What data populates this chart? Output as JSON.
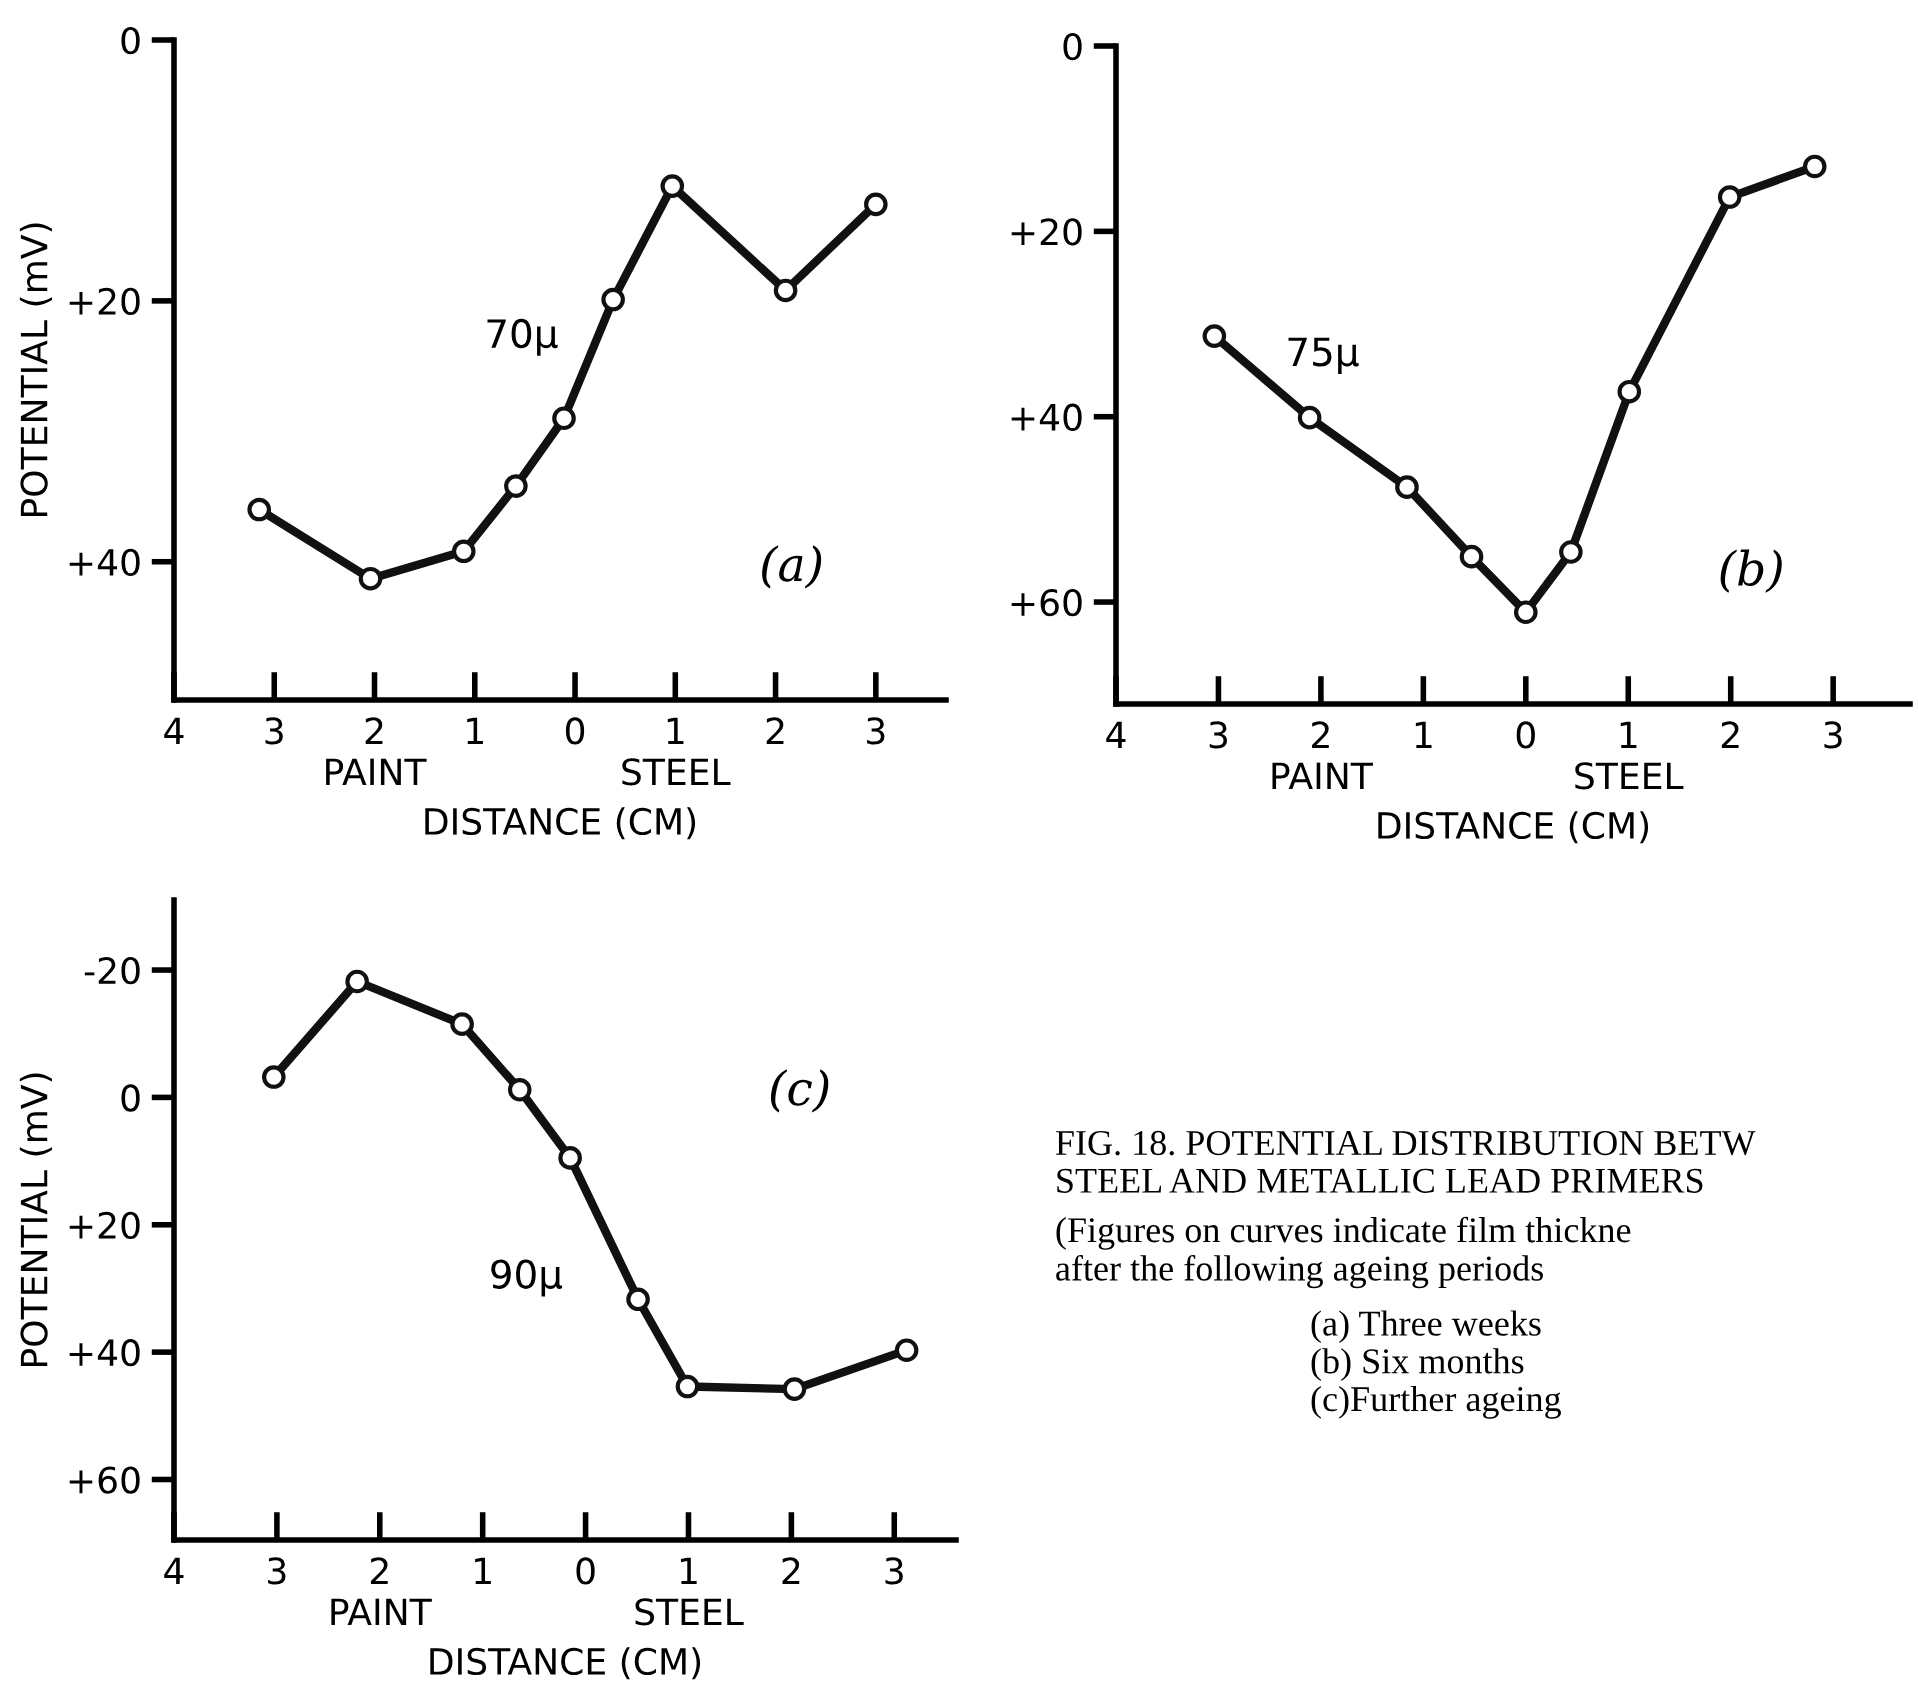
{
  "chart_data": [
    {
      "type": "line",
      "xlabel": "DISTANCE (CM)",
      "ylabel": "POTENTIAL (mV)",
      "marker": "circle",
      "line_style": "solid",
      "xlim": [
        -4,
        3.7
      ],
      "ylim": [
        50.6,
        0
      ],
      "xticks": [
        {
          "value": -4,
          "label": "4"
        },
        {
          "value": -3,
          "label": "3"
        },
        {
          "value": -2,
          "label": "2"
        },
        {
          "value": -1,
          "label": "1"
        },
        0,
        1,
        2,
        3
      ],
      "yticks": [
        0,
        {
          "value": 20,
          "label": "+20"
        },
        {
          "value": 40,
          "label": "+40"
        }
      ],
      "series": [
        {
          "color": "#111111",
          "x": [
            -3.15,
            -2.04,
            -1.11,
            -0.59,
            -0.11,
            0.38,
            0.97,
            2.1,
            3.0
          ],
          "values": [
            36,
            41.3,
            39.2,
            34.2,
            29,
            19.9,
            11.2,
            19.2,
            12.6
          ]
        }
      ],
      "annotations": [
        "70μ",
        "(a)",
        "PAINT",
        "STEEL"
      ]
    },
    {
      "type": "line",
      "xlabel": "DISTANCE (CM)",
      "marker": "circle",
      "line_style": "solid",
      "xlim": [
        -4,
        3.75
      ],
      "ylim": [
        71,
        0
      ],
      "xticks": [
        {
          "value": -4,
          "label": "4"
        },
        {
          "value": -3,
          "label": "3"
        },
        {
          "value": -2,
          "label": "2"
        },
        {
          "value": -1,
          "label": "1"
        },
        0,
        1,
        2,
        3
      ],
      "yticks": [
        0,
        {
          "value": 20,
          "label": "+20"
        },
        {
          "value": 40,
          "label": "+40"
        },
        {
          "value": 60,
          "label": "+60"
        }
      ],
      "series": [
        {
          "color": "#111111",
          "x": [
            -3.04,
            -2.11,
            -1.16,
            -0.53,
            0,
            0.44,
            1.01,
            1.99,
            2.82
          ],
          "values": [
            31.3,
            40.1,
            47.6,
            55.1,
            61.1,
            54.6,
            37.3,
            16.3,
            13
          ]
        }
      ],
      "annotations": [
        "75μ",
        "(b)",
        "PAINT",
        "STEEL"
      ]
    },
    {
      "type": "line",
      "xlabel": "DISTANCE (CM)",
      "ylabel": "POTENTIAL (mV)",
      "marker": "circle",
      "line_style": "solid",
      "xlim": [
        -4,
        3.6
      ],
      "ylim": [
        69.5,
        -31
      ],
      "xticks": [
        {
          "value": -4,
          "label": "4"
        },
        {
          "value": -3,
          "label": "3"
        },
        {
          "value": -2,
          "label": "2"
        },
        {
          "value": -1,
          "label": "1"
        },
        0,
        1,
        2,
        3
      ],
      "yticks": [
        {
          "value": -20,
          "label": "-20"
        },
        0,
        {
          "value": 20,
          "label": "+20"
        },
        {
          "value": 40,
          "label": "+40"
        },
        {
          "value": 60,
          "label": "+60"
        }
      ],
      "series": [
        {
          "color": "#111111",
          "x": [
            -3.03,
            -2.22,
            -1.2,
            -0.64,
            -0.15,
            0.51,
            0.99,
            2.03,
            3.12
          ],
          "values": [
            -3.2,
            -18.2,
            -11.5,
            -1.2,
            9.5,
            31.7,
            45.4,
            45.8,
            39.7
          ]
        }
      ],
      "annotations": [
        "90μ",
        "(c)",
        "PAINT",
        "STEEL",
        "FIG. 18. POTENTIAL DISTRIBUTION BETW\nSTEEL AND METALLIC LEAD PRIMERS",
        "(Figures on curves indicate film thickne\nafter the following ageing periods",
        "(a) Three weeks\n(b) Six months\n(c)Further ageing"
      ]
    }
  ]
}
